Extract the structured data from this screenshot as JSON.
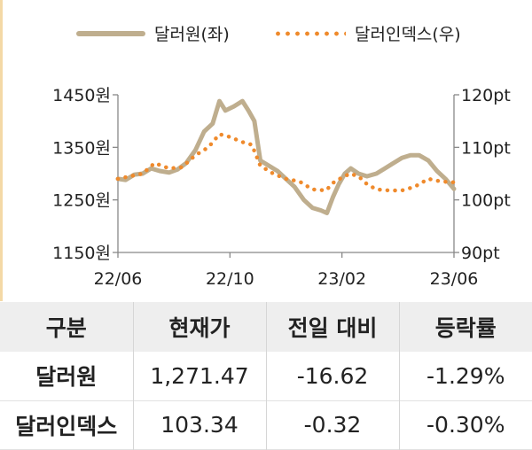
{
  "legend": {
    "series1": "달러원(좌)",
    "series2": "달러인덱스(우)"
  },
  "colors": {
    "krw": "#bfae8e",
    "dxy": "#ef8a2c",
    "axis": "#888888",
    "table_header_bg": "#eeeeee"
  },
  "chart_data": {
    "type": "line",
    "x_ticks": [
      "22/06",
      "22/10",
      "23/02",
      "23/06"
    ],
    "y_left": {
      "ticks": [
        "1450원",
        "1350원",
        "1250원",
        "1150원"
      ],
      "range": [
        1150,
        1450
      ]
    },
    "y_right": {
      "ticks": [
        "120pt",
        "110pt",
        "100pt",
        "90pt"
      ],
      "range": [
        90,
        120
      ]
    },
    "grid": false,
    "legend_position": "top",
    "series": [
      {
        "name": "달러원(좌)",
        "axis": "left",
        "style": "solid",
        "points": [
          [
            "2022-06-01",
            1290
          ],
          [
            "2022-06-10",
            1288
          ],
          [
            "2022-06-20",
            1298
          ],
          [
            "2022-06-30",
            1300
          ],
          [
            "2022-07-10",
            1310
          ],
          [
            "2022-07-20",
            1305
          ],
          [
            "2022-07-31",
            1302
          ],
          [
            "2022-08-10",
            1308
          ],
          [
            "2022-08-20",
            1320
          ],
          [
            "2022-08-31",
            1345
          ],
          [
            "2022-09-10",
            1380
          ],
          [
            "2022-09-20",
            1395
          ],
          [
            "2022-09-28",
            1438
          ],
          [
            "2022-10-05",
            1420
          ],
          [
            "2022-10-15",
            1428
          ],
          [
            "2022-10-25",
            1438
          ],
          [
            "2022-11-01",
            1420
          ],
          [
            "2022-11-08",
            1400
          ],
          [
            "2022-11-15",
            1325
          ],
          [
            "2022-11-25",
            1315
          ],
          [
            "2022-12-05",
            1305
          ],
          [
            "2022-12-15",
            1290
          ],
          [
            "2022-12-25",
            1275
          ],
          [
            "2023-01-05",
            1250
          ],
          [
            "2023-01-15",
            1235
          ],
          [
            "2023-01-25",
            1230
          ],
          [
            "2023-02-01",
            1225
          ],
          [
            "2023-02-08",
            1255
          ],
          [
            "2023-02-15",
            1280
          ],
          [
            "2023-02-22",
            1300
          ],
          [
            "2023-03-01",
            1310
          ],
          [
            "2023-03-10",
            1300
          ],
          [
            "2023-03-20",
            1295
          ],
          [
            "2023-03-31",
            1300
          ],
          [
            "2023-04-10",
            1310
          ],
          [
            "2023-04-20",
            1320
          ],
          [
            "2023-04-30",
            1330
          ],
          [
            "2023-05-10",
            1335
          ],
          [
            "2023-05-20",
            1335
          ],
          [
            "2023-05-31",
            1325
          ],
          [
            "2023-06-10",
            1305
          ],
          [
            "2023-06-20",
            1290
          ],
          [
            "2023-06-30",
            1271
          ]
        ]
      },
      {
        "name": "달러인덱스(우)",
        "axis": "right",
        "style": "dotted",
        "points": [
          [
            "2022-06-01",
            104.0
          ],
          [
            "2022-06-15",
            104.5
          ],
          [
            "2022-06-30",
            105.0
          ],
          [
            "2022-07-14",
            107.0
          ],
          [
            "2022-07-31",
            106.0
          ],
          [
            "2022-08-15",
            106.2
          ],
          [
            "2022-08-31",
            108.5
          ],
          [
            "2022-09-15",
            110.0
          ],
          [
            "2022-09-28",
            112.5
          ],
          [
            "2022-10-10",
            112.0
          ],
          [
            "2022-10-25",
            111.0
          ],
          [
            "2022-11-05",
            110.5
          ],
          [
            "2022-11-15",
            106.5
          ],
          [
            "2022-11-30",
            105.0
          ],
          [
            "2022-12-15",
            104.0
          ],
          [
            "2022-12-31",
            103.5
          ],
          [
            "2023-01-15",
            102.0
          ],
          [
            "2023-01-31",
            101.8
          ],
          [
            "2023-02-10",
            103.5
          ],
          [
            "2023-02-28",
            105.0
          ],
          [
            "2023-03-10",
            104.5
          ],
          [
            "2023-03-20",
            103.0
          ],
          [
            "2023-03-31",
            102.0
          ],
          [
            "2023-04-15",
            101.8
          ],
          [
            "2023-04-30",
            101.8
          ],
          [
            "2023-05-15",
            102.5
          ],
          [
            "2023-05-31",
            104.0
          ],
          [
            "2023-06-15",
            103.5
          ],
          [
            "2023-06-30",
            103.34
          ]
        ]
      }
    ]
  },
  "table": {
    "headers": [
      "구분",
      "현재가",
      "전일 대비",
      "등락률"
    ],
    "rows": [
      [
        "달러원",
        "1,271.47",
        "-16.62",
        "-1.29%"
      ],
      [
        "달러인덱스",
        "103.34",
        "-0.32",
        "-0.30%"
      ]
    ]
  }
}
